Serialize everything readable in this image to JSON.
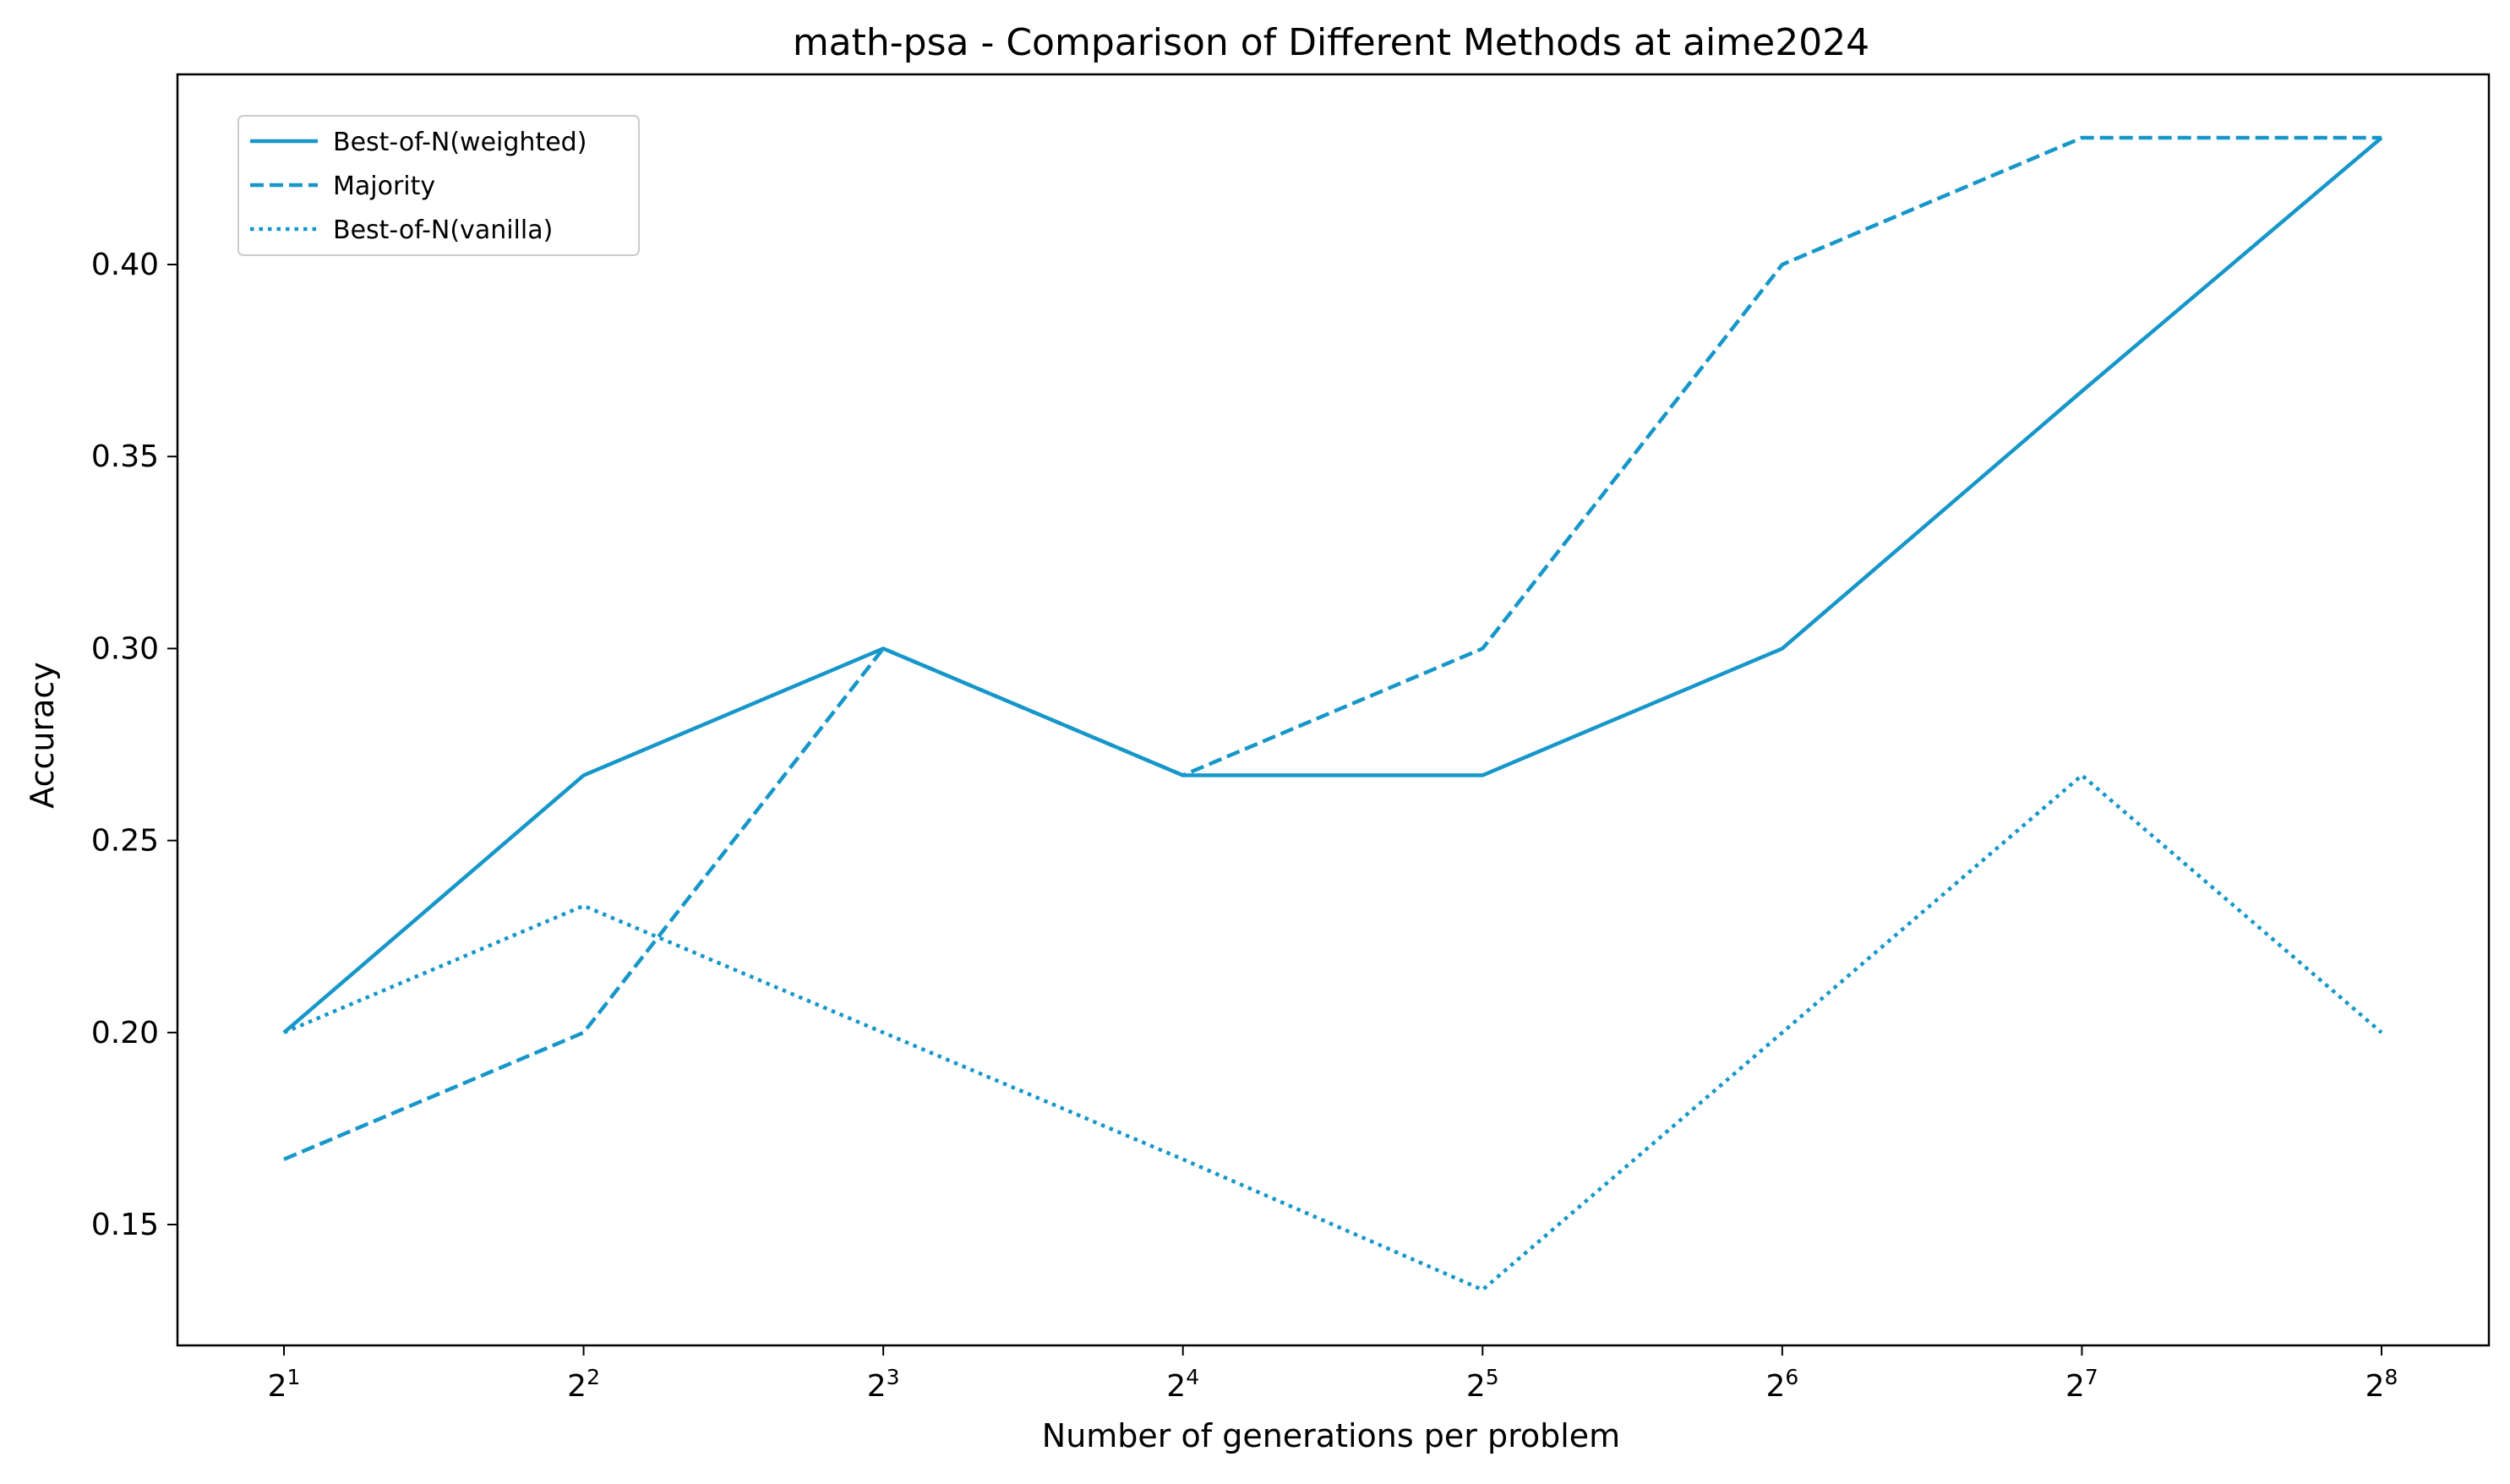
{
  "chart_data": {
    "type": "line",
    "title": "math-psa - Comparison of Different Methods at aime2024",
    "xlabel": "Number of generations per problem",
    "ylabel": "Accuracy",
    "x": [
      2,
      4,
      8,
      16,
      32,
      64,
      128,
      256
    ],
    "x_scale": "log2",
    "x_tick_labels": [
      {
        "base": "2",
        "exp": "1"
      },
      {
        "base": "2",
        "exp": "2"
      },
      {
        "base": "2",
        "exp": "3"
      },
      {
        "base": "2",
        "exp": "4"
      },
      {
        "base": "2",
        "exp": "5"
      },
      {
        "base": "2",
        "exp": "6"
      },
      {
        "base": "2",
        "exp": "7"
      },
      {
        "base": "2",
        "exp": "8"
      }
    ],
    "y_ticks": [
      "0.15",
      "0.20",
      "0.25",
      "0.30",
      "0.35",
      "0.40"
    ],
    "ylim": [
      0.118,
      0.448
    ],
    "grid": false,
    "legend_position": "top-left",
    "color": "#1797c9",
    "series": [
      {
        "name": "Best-of-N(weighted)",
        "style": "solid",
        "values": [
          0.2,
          0.267,
          0.3,
          0.267,
          0.267,
          0.3,
          0.367,
          0.433
        ]
      },
      {
        "name": "Majority",
        "style": "dashed",
        "values": [
          0.167,
          0.2,
          0.3,
          0.267,
          0.3,
          0.4,
          0.433,
          0.433
        ]
      },
      {
        "name": "Best-of-N(vanilla)",
        "style": "dotted",
        "values": [
          0.2,
          0.233,
          0.2,
          0.167,
          0.133,
          0.2,
          0.267,
          0.2
        ]
      }
    ]
  }
}
